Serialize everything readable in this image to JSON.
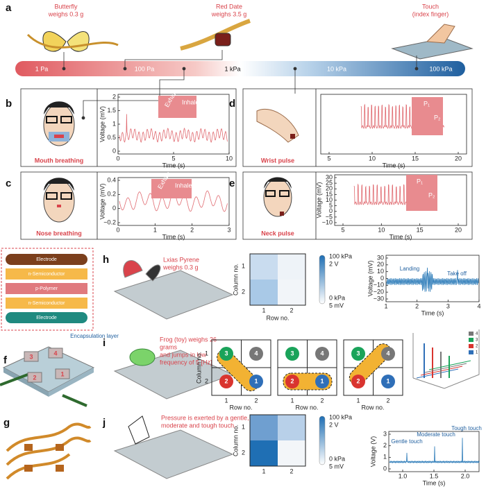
{
  "a": {
    "letter": "a",
    "items": [
      {
        "name": "Butterfly",
        "note": "weighs 0.3 g"
      },
      {
        "name": "Red Date",
        "note": "weighs 3.5 g"
      },
      {
        "name": "Touch",
        "note": "(index finger)"
      }
    ],
    "scale": [
      "1 Pa",
      "100 Pa",
      "1 kPa",
      "10 kPa",
      "100 kPa"
    ]
  },
  "b": {
    "letter": "b",
    "caption": "Mouth breathing",
    "y_label": "Voltage (mV)",
    "x_label": "Time (s)",
    "yticks": [
      "2",
      "1.5",
      "1",
      "0.5",
      "0"
    ],
    "xticks": [
      "0",
      "5",
      "10"
    ],
    "inset": [
      "Exhale",
      "Inhale"
    ]
  },
  "c": {
    "letter": "c",
    "caption": "Nose breathing",
    "y_label": "Voltage (mV)",
    "x_label": "Time (s)",
    "yticks": [
      "0.4",
      "0.2",
      "0",
      "−0.2"
    ],
    "xticks": [
      "0",
      "1",
      "2",
      "3"
    ],
    "inset": [
      "Exhale",
      "Inhale"
    ]
  },
  "d": {
    "letter": "d",
    "caption": "Wrist pulse",
    "x_label": "Time (s)",
    "xticks": [
      "5",
      "10",
      "15",
      "20"
    ],
    "inset": [
      "P₁",
      "P₂"
    ]
  },
  "e": {
    "letter": "e",
    "caption": "Neck pulse",
    "y_label": "Voltage (mV)",
    "x_label": "Time (s)",
    "yticks": [
      "30",
      "25",
      "20",
      "15",
      "10",
      "5",
      "0",
      "−5",
      "−10"
    ],
    "xticks": [
      "5",
      "10",
      "15",
      "20"
    ],
    "inset": [
      "P₁",
      "P₂"
    ]
  },
  "f": {
    "letter": "f",
    "layers": [
      "Electrode",
      "n-Semiconductor",
      "p-Polymer",
      "n-Semiconductor",
      "Electrode"
    ],
    "encapsulation": "Encapsulation layer",
    "pixels": [
      "3",
      "4",
      "2",
      "1"
    ]
  },
  "g": {
    "letter": "g"
  },
  "h": {
    "letter": "h",
    "note": [
      "Lxias Pyrene",
      "weighs 0.3 g"
    ],
    "map": {
      "y_label": "Column no.",
      "x_label": "Row no.",
      "ticks": [
        "1",
        "2"
      ],
      "colorbar": [
        "100 kPa",
        "2 V",
        "0 kPa",
        "5 mV"
      ]
    },
    "chart": {
      "y_label": "Voltage (mV)",
      "x_label": "Time (s)",
      "yticks": [
        "30",
        "20",
        "10",
        "0",
        "−10",
        "−20",
        "−30"
      ],
      "xticks": [
        "1",
        "2",
        "3",
        "4"
      ],
      "annotations": [
        "Landing",
        "Take off"
      ]
    }
  },
  "i": {
    "letter": "i",
    "note": [
      "Frog (toy) weighs 26",
      "grams",
      "and jumps in low",
      "frequency of 5 [Hz]"
    ],
    "y_label": "Column no.",
    "x_label": "Row no.",
    "ticks": [
      "1",
      "2"
    ],
    "pixels": [
      "3",
      "4",
      "2",
      "1"
    ],
    "legend": [
      "4",
      "3",
      "2",
      "1"
    ]
  },
  "j": {
    "letter": "j",
    "note": [
      "Pressure is exerted by a gentle,",
      "moderate and tough touch."
    ],
    "map": {
      "y_label": "Column no.",
      "ticks": [
        "1",
        "2"
      ],
      "colorbar": [
        "100 kPa",
        "2 V",
        "0 kPa",
        "5 mV"
      ]
    },
    "chart": {
      "y_label": "Voltage (V)",
      "x_label": "Time (s)",
      "yticks": [
        "3",
        "2",
        "1",
        "0"
      ],
      "xticks": [
        "1.0",
        "1.5",
        "2.0"
      ],
      "annotations": [
        "Gentle touch",
        "Moderate touch",
        "Tough touch"
      ]
    }
  }
}
